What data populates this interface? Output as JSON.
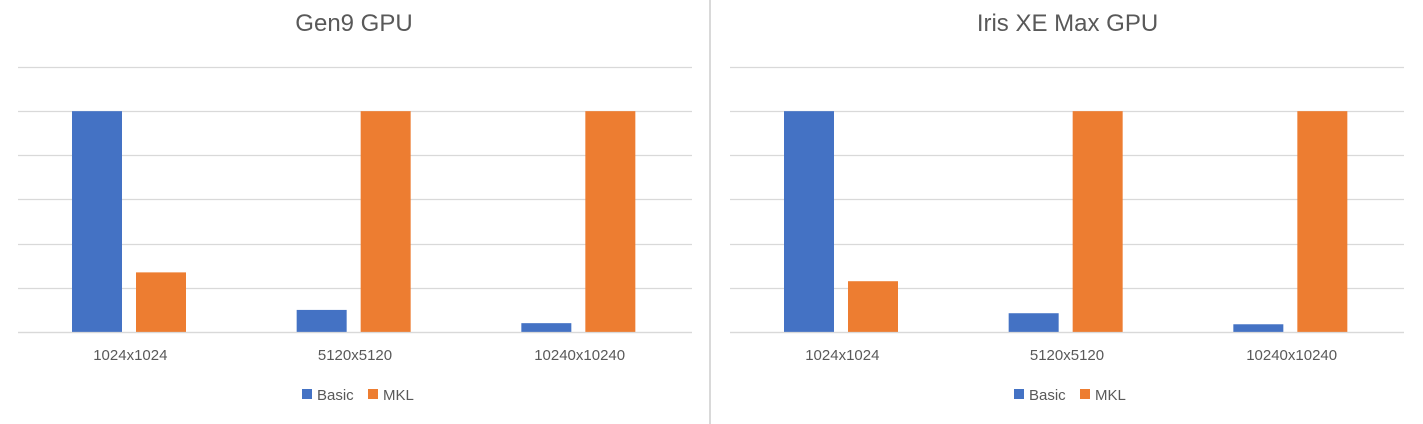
{
  "colors": {
    "basic": "#4472c4",
    "mkl": "#ed7d31",
    "grid": "#d9d9d9",
    "text": "#595959"
  },
  "chart_data": [
    {
      "type": "bar",
      "title": "Gen9 GPU",
      "categories": [
        "1024x1024",
        "5120x5120",
        "10240x10240"
      ],
      "series": [
        {
          "name": "Basic",
          "values": [
            1.0,
            0.1,
            0.04
          ]
        },
        {
          "name": "MKL",
          "values": [
            0.27,
            1.0,
            1.0
          ]
        }
      ],
      "ylim": [
        0,
        1.2
      ],
      "grid": true,
      "legend": "bottom-center"
    },
    {
      "type": "bar",
      "title": "Iris XE Max GPU",
      "categories": [
        "1024x1024",
        "5120x5120",
        "10240x10240"
      ],
      "series": [
        {
          "name": "Basic",
          "values": [
            1.0,
            0.085,
            0.035
          ]
        },
        {
          "name": "MKL",
          "values": [
            0.23,
            1.0,
            1.0
          ]
        }
      ],
      "ylim": [
        0,
        1.2
      ],
      "grid": true,
      "legend": "bottom-center"
    }
  ]
}
